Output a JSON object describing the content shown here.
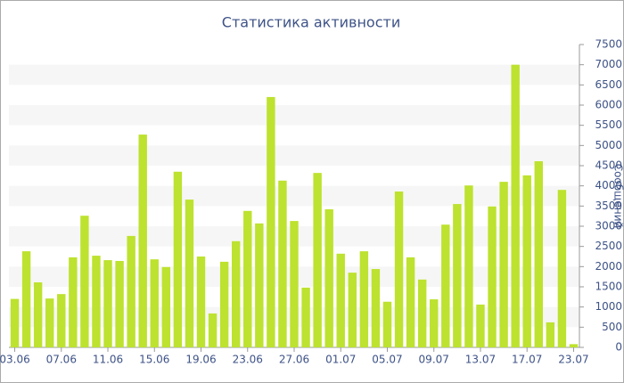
{
  "chart_data": {
    "type": "bar",
    "title": "Статистика активности",
    "y_label": "Сообщений",
    "categories": [
      "03.06",
      null,
      null,
      null,
      "07.06",
      null,
      null,
      null,
      "11.06",
      null,
      null,
      null,
      "15.06",
      null,
      null,
      null,
      "19.06",
      null,
      null,
      null,
      "23.06",
      null,
      null,
      null,
      "27.06",
      null,
      null,
      null,
      "01.07",
      null,
      null,
      null,
      "05.07",
      null,
      null,
      null,
      "09.07",
      null,
      null,
      null,
      "13.07",
      null,
      null,
      null,
      "17.07",
      null,
      null,
      null,
      "23.07"
    ],
    "values": [
      1200,
      2380,
      1610,
      1210,
      1320,
      2230,
      3260,
      2270,
      2160,
      2140,
      2760,
      5270,
      2180,
      1990,
      4350,
      3660,
      2250,
      840,
      2120,
      2630,
      3380,
      3070,
      6200,
      4130,
      3130,
      1480,
      4320,
      3420,
      2320,
      1850,
      2380,
      1940,
      1130,
      3860,
      2230,
      1680,
      1190,
      3040,
      3550,
      4010,
      1060,
      3490,
      4100,
      7000,
      4260,
      4610,
      620,
      3900,
      80
    ],
    "color": "#bde22f",
    "ylim": [
      0,
      7500
    ],
    "yticks": [
      0,
      500,
      1000,
      1500,
      2000,
      2500,
      3000,
      3500,
      4000,
      4500,
      5000,
      5500,
      6000,
      6500,
      7000,
      7500
    ],
    "grid": true
  }
}
